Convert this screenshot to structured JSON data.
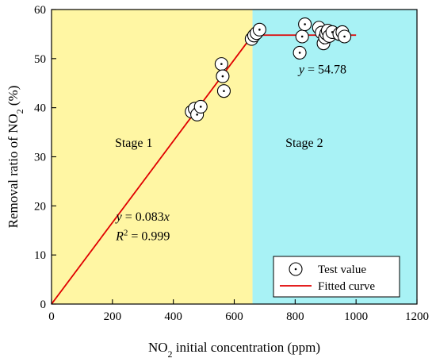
{
  "chart_data": {
    "type": "scatter",
    "xlabel": {
      "pre": "NO",
      "sub": "2",
      "post": " initial concentration (ppm)"
    },
    "ylabel": {
      "pre": "Removal ratio of NO",
      "sub": "2",
      "post": " (%)"
    },
    "xlim": [
      0,
      1200
    ],
    "ylim": [
      0,
      60
    ],
    "xticks": [
      0,
      200,
      400,
      600,
      800,
      1000,
      1200
    ],
    "yticks": [
      0,
      10,
      20,
      30,
      40,
      50,
      60
    ],
    "grid": false,
    "regions": [
      {
        "label": "Stage 1",
        "x_from": 0,
        "x_to": 660,
        "color": "#FFF6A3",
        "label_x": 270,
        "label_y": 32
      },
      {
        "label": "Stage 2",
        "x_from": 660,
        "x_to": 1200,
        "color": "#A8F2F5",
        "label_x": 830,
        "label_y": 32
      }
    ],
    "series": [
      {
        "name": "Test value",
        "kind": "scatter",
        "x": [
          460,
          470,
          478,
          490,
          558,
          562,
          566,
          657,
          665,
          673,
          683,
          815,
          823,
          832,
          878,
          887,
          893,
          898,
          902,
          907,
          912,
          922,
          945,
          955,
          962
        ],
        "y": [
          39.2,
          39.8,
          38.6,
          40.2,
          48.9,
          46.4,
          43.4,
          54.0,
          54.7,
          55.2,
          55.9,
          51.2,
          54.5,
          57.0,
          56.3,
          55.3,
          53.1,
          54.3,
          55.1,
          55.7,
          54.6,
          55.4,
          55.0,
          55.4,
          54.5
        ]
      },
      {
        "name": "Fitted curve",
        "kind": "line",
        "color": "#E00000",
        "x": [
          0,
          660,
          1000
        ],
        "y": [
          0,
          54.78,
          54.78
        ]
      }
    ],
    "annotations": [
      {
        "type": "eq",
        "var": "y",
        "value": " = 54.78",
        "x": 890,
        "y": 47
      },
      {
        "type": "eq",
        "var": "y",
        "value": " = 0.083",
        "suffix": "x",
        "x": 300,
        "y": 17
      },
      {
        "type": "r2",
        "var": "R",
        "sup": "2",
        "value": " = 0.999",
        "x": 300,
        "y": 13
      }
    ],
    "legend": {
      "position": "bottom-right"
    }
  }
}
